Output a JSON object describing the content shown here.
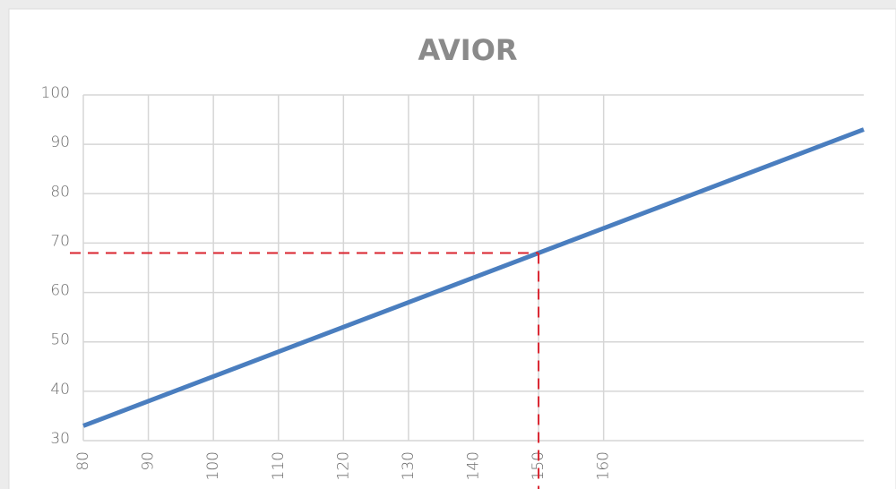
{
  "chart_data": {
    "type": "line",
    "title": "AVIOR",
    "x": [
      80,
      200
    ],
    "series": [
      {
        "name": "AVIOR",
        "color": "#4a7ebf",
        "values": [
          33,
          93
        ]
      }
    ],
    "xlim": [
      80,
      200
    ],
    "xticks": [
      80,
      90,
      100,
      110,
      120,
      130,
      140,
      150,
      160
    ],
    "ylim": [
      30,
      100
    ],
    "yticks": [
      30,
      40,
      50,
      60,
      70,
      80,
      90,
      100
    ],
    "grid": true,
    "reference_point": {
      "x": 150,
      "y": 68,
      "color": "#d9232e"
    }
  }
}
